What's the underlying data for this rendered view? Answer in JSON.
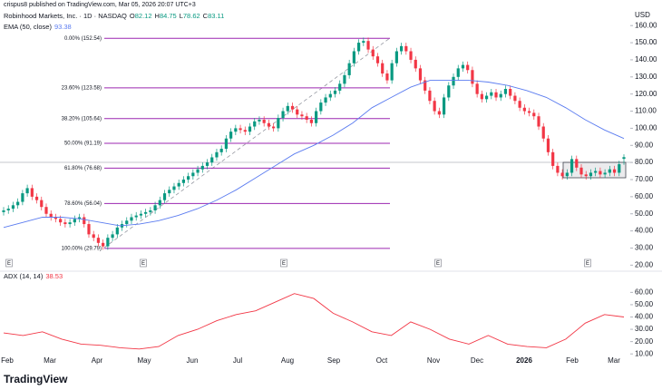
{
  "header": "crispus8 published on TradingView.com, Mar 05, 2026 20:07 UTC+3",
  "footer": "TradingView",
  "chart_data": [
    {
      "type": "candlestick",
      "title": "Robinhood Markets, Inc. · 1D · NASDAQ",
      "currency": "USD",
      "ohlc_labels": [
        "O",
        "H",
        "L",
        "C"
      ],
      "up_color": "#089981",
      "down_color": "#f23645",
      "ylim": [
        17,
        167
      ],
      "yticks": [
        {
          "value": 160,
          "label": "160.00"
        },
        {
          "value": 150,
          "label": "150.00"
        },
        {
          "value": 140,
          "label": "140.00"
        },
        {
          "value": 130,
          "label": "130.00"
        },
        {
          "value": 120,
          "label": "120.00"
        },
        {
          "value": 110,
          "label": "110.00"
        },
        {
          "value": 100,
          "label": "100.00"
        },
        {
          "value": 90,
          "label": "90.00"
        },
        {
          "value": 80,
          "label": "80.00"
        },
        {
          "value": 70,
          "label": "70.00"
        },
        {
          "value": 60,
          "label": "60.00"
        },
        {
          "value": 50,
          "label": "50.00"
        },
        {
          "value": 40,
          "label": "40.00"
        },
        {
          "value": 30,
          "label": "30.00"
        },
        {
          "value": 20,
          "label": "20.00"
        }
      ],
      "candles": {
        "open": [
          51,
          52,
          53,
          55,
          57,
          62,
          65,
          60,
          58,
          54,
          50,
          48,
          47,
          45,
          44,
          45,
          47,
          48,
          44,
          38,
          36,
          33,
          31,
          36,
          38,
          42,
          44,
          46,
          48,
          49,
          50,
          51,
          52,
          55,
          58,
          62,
          64,
          66,
          68,
          70,
          72,
          74,
          76,
          78,
          80,
          83,
          86,
          88,
          94,
          98,
          100,
          99,
          98,
          101,
          104,
          105,
          103,
          101,
          100,
          106,
          110,
          113,
          111,
          108,
          107,
          105,
          103,
          110,
          115,
          118,
          120,
          122,
          126,
          131,
          138,
          145,
          150,
          151,
          146,
          142,
          138,
          132,
          128,
          138,
          145,
          148,
          145,
          140,
          135,
          128,
          122,
          116,
          110,
          108,
          118,
          125,
          130,
          135,
          137,
          134,
          126,
          120,
          117,
          119,
          121,
          118,
          120,
          123,
          119,
          116,
          112,
          110,
          109,
          107,
          101,
          94,
          86,
          78,
          74,
          72,
          74,
          82,
          77,
          73,
          72,
          74,
          75,
          73,
          74,
          76,
          74,
          82.12
        ],
        "high": [
          54,
          55,
          57,
          59,
          64,
          67,
          67,
          62,
          60,
          56,
          52,
          50,
          49,
          47,
          47,
          49,
          50,
          50,
          46,
          40,
          38,
          35,
          38,
          40,
          44,
          46,
          48,
          50,
          51,
          52,
          53,
          54,
          57,
          60,
          64,
          66,
          68,
          70,
          72,
          74,
          76,
          78,
          80,
          82,
          85,
          88,
          90,
          96,
          100,
          102,
          102,
          101,
          103,
          106,
          107,
          107,
          105,
          103,
          108,
          112,
          115,
          115,
          113,
          110,
          109,
          107,
          112,
          117,
          120,
          122,
          124,
          128,
          133,
          140,
          147,
          152,
          153,
          153,
          148,
          144,
          140,
          134,
          140,
          147,
          150,
          150,
          147,
          142,
          137,
          130,
          124,
          118,
          112,
          120,
          127,
          132,
          137,
          139,
          139,
          136,
          128,
          122,
          121,
          123,
          123,
          122,
          125,
          125,
          121,
          118,
          114,
          112,
          111,
          109,
          103,
          96,
          88,
          80,
          76,
          76,
          84,
          84,
          79,
          75,
          76,
          77,
          77,
          76,
          78,
          78,
          81,
          84.75
        ],
        "low": [
          49,
          50,
          51,
          53,
          55,
          60,
          58,
          56,
          52,
          48,
          46,
          45,
          43,
          42,
          42,
          43,
          45,
          42,
          36,
          34,
          31,
          29,
          29,
          34,
          36,
          40,
          42,
          44,
          46,
          47,
          48,
          49,
          50,
          53,
          56,
          60,
          62,
          64,
          66,
          68,
          70,
          72,
          74,
          76,
          78,
          81,
          84,
          86,
          92,
          96,
          97,
          96,
          96,
          99,
          102,
          101,
          99,
          98,
          98,
          104,
          108,
          109,
          106,
          105,
          103,
          101,
          101,
          108,
          113,
          116,
          118,
          120,
          124,
          129,
          136,
          143,
          148,
          144,
          140,
          136,
          130,
          126,
          126,
          136,
          143,
          143,
          138,
          133,
          126,
          120,
          114,
          108,
          106,
          106,
          116,
          123,
          128,
          133,
          132,
          124,
          118,
          115,
          115,
          117,
          116,
          116,
          118,
          117,
          114,
          110,
          108,
          107,
          105,
          99,
          92,
          84,
          76,
          72,
          70,
          70,
          72,
          75,
          71,
          70,
          70,
          72,
          71,
          71,
          72,
          72,
          72,
          78.62
        ],
        "close": [
          52,
          53,
          55,
          57,
          62,
          65,
          60,
          58,
          54,
          50,
          48,
          47,
          45,
          44,
          45,
          47,
          48,
          44,
          38,
          36,
          33,
          31,
          36,
          38,
          42,
          44,
          46,
          48,
          49,
          50,
          51,
          52,
          55,
          58,
          62,
          64,
          66,
          68,
          70,
          72,
          74,
          76,
          78,
          80,
          83,
          86,
          88,
          94,
          98,
          100,
          99,
          98,
          101,
          104,
          105,
          103,
          101,
          100,
          106,
          110,
          113,
          111,
          108,
          107,
          105,
          103,
          110,
          115,
          118,
          120,
          122,
          126,
          131,
          138,
          145,
          150,
          151,
          146,
          142,
          138,
          132,
          128,
          138,
          145,
          148,
          145,
          140,
          135,
          128,
          122,
          116,
          110,
          108,
          118,
          125,
          130,
          135,
          137,
          134,
          126,
          120,
          117,
          119,
          121,
          118,
          120,
          123,
          119,
          116,
          112,
          110,
          109,
          107,
          101,
          94,
          86,
          78,
          74,
          72,
          74,
          82,
          77,
          73,
          72,
          74,
          75,
          73,
          74,
          76,
          74,
          79,
          83.11
        ]
      },
      "series": [
        {
          "name": "EMA (50, close)",
          "color": "#5b7cf0",
          "last_label": "93.38",
          "values": [
            42,
            45,
            48,
            48,
            47,
            45,
            43,
            44,
            46,
            49,
            53,
            58,
            64,
            71,
            78,
            85,
            90,
            96,
            103,
            112,
            118,
            124,
            128,
            128,
            128,
            127,
            125,
            122,
            118,
            112,
            105,
            99,
            94
          ]
        }
      ],
      "fib_color": "#9c27b0",
      "fib_levels": [
        {
          "value": 152.54,
          "label": "0.00% (152.54)"
        },
        {
          "value": 123.58,
          "label": "23.60% (123.58)"
        },
        {
          "value": 105.64,
          "label": "38.20% (105.64)"
        },
        {
          "value": 91.19,
          "label": "50.00% (91.19)"
        },
        {
          "value": 76.68,
          "label": "61.80% (76.68)"
        },
        {
          "value": 56.04,
          "label": "78.60% (56.04)"
        },
        {
          "value": 29.79,
          "label": "100.00% (29.79)"
        }
      ],
      "earnings_markers": [
        "E",
        "E",
        "E",
        "E",
        "E"
      ]
    },
    {
      "type": "line",
      "title": "ADX (14, 14)",
      "ylim": [
        5,
        75
      ],
      "yticks": [
        {
          "value": 60,
          "label": "60.00"
        },
        {
          "value": 50,
          "label": "50.00"
        },
        {
          "value": 40,
          "label": "40.00"
        },
        {
          "value": 30,
          "label": "30.00"
        },
        {
          "value": 20,
          "label": "20.00"
        },
        {
          "value": 10,
          "label": "10.00"
        }
      ],
      "series": [
        {
          "name": "ADX",
          "color": "#f23645",
          "last_label": "38.53",
          "values": [
            27,
            25,
            28,
            22,
            18,
            17,
            15,
            14,
            16,
            25,
            30,
            37,
            42,
            45,
            52,
            59,
            55,
            43,
            36,
            28,
            25,
            36,
            30,
            22,
            18,
            25,
            18,
            16,
            15,
            22,
            35,
            42,
            40
          ]
        }
      ],
      "x_labels": [
        "Feb",
        "Mar",
        "Apr",
        "May",
        "Jun",
        "Jul",
        "Aug",
        "Sep",
        "Oct",
        "Nov",
        "Dec",
        "2026",
        "Feb",
        "Mar"
      ]
    }
  ]
}
